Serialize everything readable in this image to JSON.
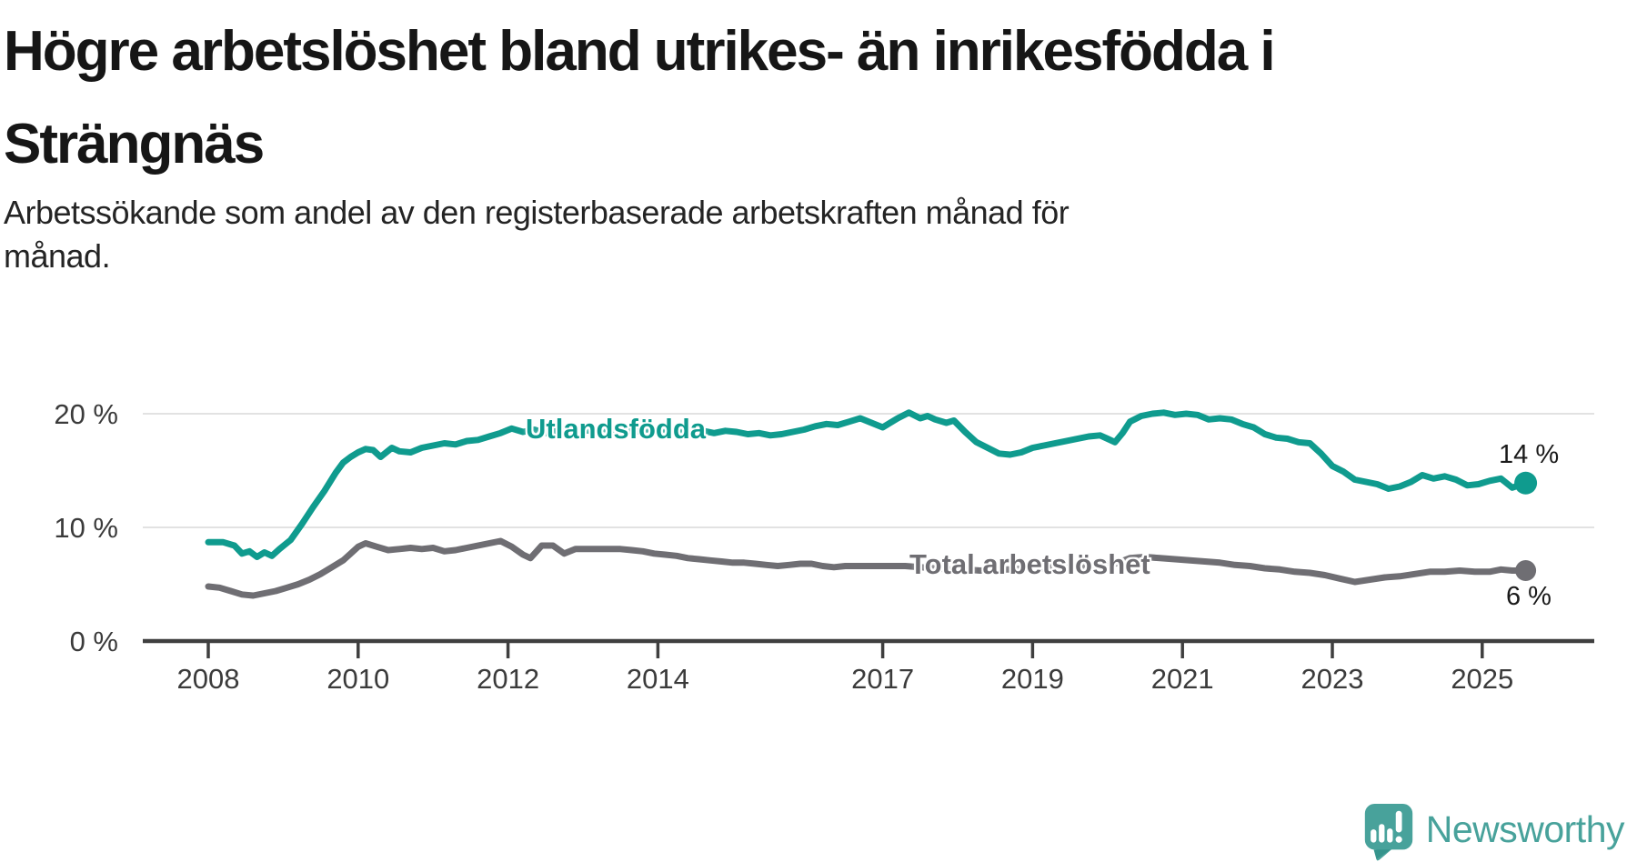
{
  "header": {
    "title_line1": "Högre arbetslöshet bland utrikes- än inrikesfödda i",
    "title_line2": "Strängnäs",
    "subtitle_line1": "Arbetssökande som andel av den registerbaserade arbetskraften månad för",
    "subtitle_line2": "månad."
  },
  "chart_data": {
    "type": "line",
    "title": "Högre arbetslöshet bland utrikes- än inrikesfödda i Strängnäs",
    "subtitle": "Arbetssökande som andel av den registerbaserade arbetskraften månad för månad.",
    "xlabel": "",
    "ylabel": "",
    "grid": "horizontal-only",
    "legend_position": "inline-on-line",
    "x_range": [
      2008,
      2025.6
    ],
    "ylim": [
      0,
      22
    ],
    "x_ticks": [
      "2008",
      "2010",
      "2012",
      "2014",
      "2017",
      "2019",
      "2021",
      "2023",
      "2025"
    ],
    "x_tick_years": [
      2008,
      2010,
      2012,
      2014,
      2017,
      2019,
      2021,
      2023,
      2025
    ],
    "y_ticks": [
      {
        "value": 0,
        "label": "0 %"
      },
      {
        "value": 10,
        "label": "10 %"
      },
      {
        "value": 20,
        "label": "20 %"
      }
    ],
    "series": [
      {
        "name": "Utlandsfödda",
        "color": "#0f9b8e",
        "end_label": "14 %",
        "end_value": 13.9,
        "points": [
          [
            2008.0,
            8.7
          ],
          [
            2008.1,
            8.7
          ],
          [
            2008.2,
            8.7
          ],
          [
            2008.35,
            8.4
          ],
          [
            2008.45,
            7.7
          ],
          [
            2008.55,
            7.9
          ],
          [
            2008.65,
            7.4
          ],
          [
            2008.75,
            7.8
          ],
          [
            2008.85,
            7.5
          ],
          [
            2008.95,
            8.1
          ],
          [
            2009.1,
            8.9
          ],
          [
            2009.25,
            10.3
          ],
          [
            2009.4,
            11.8
          ],
          [
            2009.55,
            13.2
          ],
          [
            2009.7,
            14.8
          ],
          [
            2009.8,
            15.7
          ],
          [
            2009.9,
            16.2
          ],
          [
            2010.0,
            16.6
          ],
          [
            2010.1,
            16.9
          ],
          [
            2010.2,
            16.8
          ],
          [
            2010.3,
            16.2
          ],
          [
            2010.45,
            17.0
          ],
          [
            2010.55,
            16.7
          ],
          [
            2010.7,
            16.6
          ],
          [
            2010.85,
            17.0
          ],
          [
            2011.0,
            17.2
          ],
          [
            2011.15,
            17.4
          ],
          [
            2011.3,
            17.3
          ],
          [
            2011.45,
            17.6
          ],
          [
            2011.6,
            17.7
          ],
          [
            2011.75,
            18.0
          ],
          [
            2011.9,
            18.3
          ],
          [
            2012.05,
            18.7
          ],
          [
            2012.2,
            18.4
          ],
          [
            2012.35,
            18.6
          ],
          [
            2012.5,
            18.3
          ],
          [
            2012.65,
            18.5
          ],
          [
            2012.8,
            18.4
          ],
          [
            2012.95,
            18.6
          ],
          [
            2013.1,
            18.5
          ],
          [
            2013.25,
            18.7
          ],
          [
            2013.4,
            18.5
          ],
          [
            2013.55,
            18.6
          ],
          [
            2013.7,
            18.4
          ],
          [
            2013.85,
            18.6
          ],
          [
            2014.0,
            18.7
          ],
          [
            2014.15,
            18.5
          ],
          [
            2014.3,
            18.4
          ],
          [
            2014.45,
            18.6
          ],
          [
            2014.6,
            18.5
          ],
          [
            2014.75,
            18.3
          ],
          [
            2014.9,
            18.5
          ],
          [
            2015.05,
            18.4
          ],
          [
            2015.2,
            18.2
          ],
          [
            2015.35,
            18.3
          ],
          [
            2015.5,
            18.1
          ],
          [
            2015.65,
            18.2
          ],
          [
            2015.8,
            18.4
          ],
          [
            2015.95,
            18.6
          ],
          [
            2016.1,
            18.9
          ],
          [
            2016.25,
            19.1
          ],
          [
            2016.4,
            19.0
          ],
          [
            2016.55,
            19.3
          ],
          [
            2016.7,
            19.6
          ],
          [
            2016.85,
            19.2
          ],
          [
            2017.0,
            18.8
          ],
          [
            2017.1,
            19.2
          ],
          [
            2017.2,
            19.6
          ],
          [
            2017.35,
            20.1
          ],
          [
            2017.5,
            19.6
          ],
          [
            2017.6,
            19.8
          ],
          [
            2017.7,
            19.5
          ],
          [
            2017.85,
            19.2
          ],
          [
            2017.95,
            19.4
          ],
          [
            2018.1,
            18.4
          ],
          [
            2018.25,
            17.5
          ],
          [
            2018.4,
            17.0
          ],
          [
            2018.55,
            16.5
          ],
          [
            2018.7,
            16.4
          ],
          [
            2018.85,
            16.6
          ],
          [
            2019.0,
            17.0
          ],
          [
            2019.15,
            17.2
          ],
          [
            2019.3,
            17.4
          ],
          [
            2019.45,
            17.6
          ],
          [
            2019.6,
            17.8
          ],
          [
            2019.75,
            18.0
          ],
          [
            2019.9,
            18.1
          ],
          [
            2020.0,
            17.8
          ],
          [
            2020.1,
            17.5
          ],
          [
            2020.2,
            18.3
          ],
          [
            2020.3,
            19.3
          ],
          [
            2020.45,
            19.8
          ],
          [
            2020.6,
            20.0
          ],
          [
            2020.75,
            20.1
          ],
          [
            2020.9,
            19.9
          ],
          [
            2021.05,
            20.0
          ],
          [
            2021.2,
            19.9
          ],
          [
            2021.35,
            19.5
          ],
          [
            2021.5,
            19.6
          ],
          [
            2021.65,
            19.5
          ],
          [
            2021.8,
            19.1
          ],
          [
            2021.95,
            18.8
          ],
          [
            2022.1,
            18.2
          ],
          [
            2022.25,
            17.9
          ],
          [
            2022.4,
            17.8
          ],
          [
            2022.55,
            17.5
          ],
          [
            2022.7,
            17.4
          ],
          [
            2022.85,
            16.5
          ],
          [
            2023.0,
            15.4
          ],
          [
            2023.15,
            14.9
          ],
          [
            2023.3,
            14.2
          ],
          [
            2023.45,
            14.0
          ],
          [
            2023.6,
            13.8
          ],
          [
            2023.75,
            13.4
          ],
          [
            2023.9,
            13.6
          ],
          [
            2024.05,
            14.0
          ],
          [
            2024.2,
            14.6
          ],
          [
            2024.35,
            14.3
          ],
          [
            2024.5,
            14.5
          ],
          [
            2024.65,
            14.2
          ],
          [
            2024.8,
            13.7
          ],
          [
            2024.95,
            13.8
          ],
          [
            2025.1,
            14.1
          ],
          [
            2025.25,
            14.3
          ],
          [
            2025.4,
            13.5
          ],
          [
            2025.58,
            13.9
          ]
        ]
      },
      {
        "name": "Total arbetslöshet",
        "color": "#6f6e73",
        "end_label": "6 %",
        "end_value": 6.2,
        "points": [
          [
            2008.0,
            4.8
          ],
          [
            2008.15,
            4.7
          ],
          [
            2008.3,
            4.4
          ],
          [
            2008.45,
            4.1
          ],
          [
            2008.6,
            4.0
          ],
          [
            2008.75,
            4.2
          ],
          [
            2008.9,
            4.4
          ],
          [
            2009.05,
            4.7
          ],
          [
            2009.2,
            5.0
          ],
          [
            2009.35,
            5.4
          ],
          [
            2009.5,
            5.9
          ],
          [
            2009.65,
            6.5
          ],
          [
            2009.8,
            7.1
          ],
          [
            2009.9,
            7.7
          ],
          [
            2010.0,
            8.3
          ],
          [
            2010.1,
            8.6
          ],
          [
            2010.25,
            8.3
          ],
          [
            2010.4,
            8.0
          ],
          [
            2010.55,
            8.1
          ],
          [
            2010.7,
            8.2
          ],
          [
            2010.85,
            8.1
          ],
          [
            2011.0,
            8.2
          ],
          [
            2011.15,
            7.9
          ],
          [
            2011.3,
            8.0
          ],
          [
            2011.45,
            8.2
          ],
          [
            2011.6,
            8.4
          ],
          [
            2011.75,
            8.6
          ],
          [
            2011.9,
            8.8
          ],
          [
            2012.05,
            8.3
          ],
          [
            2012.2,
            7.6
          ],
          [
            2012.3,
            7.3
          ],
          [
            2012.45,
            8.4
          ],
          [
            2012.6,
            8.4
          ],
          [
            2012.75,
            7.7
          ],
          [
            2012.9,
            8.1
          ],
          [
            2013.05,
            8.1
          ],
          [
            2013.2,
            8.1
          ],
          [
            2013.35,
            8.1
          ],
          [
            2013.5,
            8.1
          ],
          [
            2013.65,
            8.0
          ],
          [
            2013.8,
            7.9
          ],
          [
            2013.95,
            7.7
          ],
          [
            2014.1,
            7.6
          ],
          [
            2014.25,
            7.5
          ],
          [
            2014.4,
            7.3
          ],
          [
            2014.55,
            7.2
          ],
          [
            2014.7,
            7.1
          ],
          [
            2014.85,
            7.0
          ],
          [
            2015.0,
            6.9
          ],
          [
            2015.15,
            6.9
          ],
          [
            2015.3,
            6.8
          ],
          [
            2015.45,
            6.7
          ],
          [
            2015.6,
            6.6
          ],
          [
            2015.75,
            6.7
          ],
          [
            2015.9,
            6.8
          ],
          [
            2016.05,
            6.8
          ],
          [
            2016.2,
            6.6
          ],
          [
            2016.35,
            6.5
          ],
          [
            2016.5,
            6.6
          ],
          [
            2016.7,
            6.6
          ],
          [
            2016.9,
            6.6
          ],
          [
            2017.1,
            6.6
          ],
          [
            2017.3,
            6.6
          ],
          [
            2017.5,
            6.5
          ],
          [
            2017.7,
            6.4
          ],
          [
            2017.9,
            6.3
          ],
          [
            2018.1,
            6.3
          ],
          [
            2018.3,
            6.2
          ],
          [
            2018.5,
            6.3
          ],
          [
            2018.7,
            6.3
          ],
          [
            2018.9,
            6.4
          ],
          [
            2019.1,
            6.4
          ],
          [
            2019.3,
            6.5
          ],
          [
            2019.5,
            6.5
          ],
          [
            2019.7,
            6.6
          ],
          [
            2019.9,
            6.6
          ],
          [
            2020.1,
            6.8
          ],
          [
            2020.3,
            7.3
          ],
          [
            2020.5,
            7.4
          ],
          [
            2020.7,
            7.3
          ],
          [
            2020.9,
            7.2
          ],
          [
            2021.1,
            7.1
          ],
          [
            2021.3,
            7.0
          ],
          [
            2021.5,
            6.9
          ],
          [
            2021.7,
            6.7
          ],
          [
            2021.9,
            6.6
          ],
          [
            2022.1,
            6.4
          ],
          [
            2022.3,
            6.3
          ],
          [
            2022.5,
            6.1
          ],
          [
            2022.7,
            6.0
          ],
          [
            2022.9,
            5.8
          ],
          [
            2023.1,
            5.5
          ],
          [
            2023.3,
            5.2
          ],
          [
            2023.5,
            5.4
          ],
          [
            2023.7,
            5.6
          ],
          [
            2023.9,
            5.7
          ],
          [
            2024.1,
            5.9
          ],
          [
            2024.3,
            6.1
          ],
          [
            2024.5,
            6.1
          ],
          [
            2024.7,
            6.2
          ],
          [
            2024.9,
            6.1
          ],
          [
            2025.1,
            6.1
          ],
          [
            2025.25,
            6.3
          ],
          [
            2025.4,
            6.2
          ],
          [
            2025.58,
            6.2
          ]
        ]
      }
    ]
  },
  "colors": {
    "utlandsfodda": "#0f9b8e",
    "total": "#6f6e73",
    "grid": "#e2e2e2",
    "axis": "#3f3f3f",
    "tick_text": "#3b3b3b",
    "title_text": "#161616",
    "brand_teal": "#48a29b"
  },
  "footer": {
    "brand": "Newsworthy",
    "logo_icon": "bar-chart-speech-bubble-icon"
  }
}
